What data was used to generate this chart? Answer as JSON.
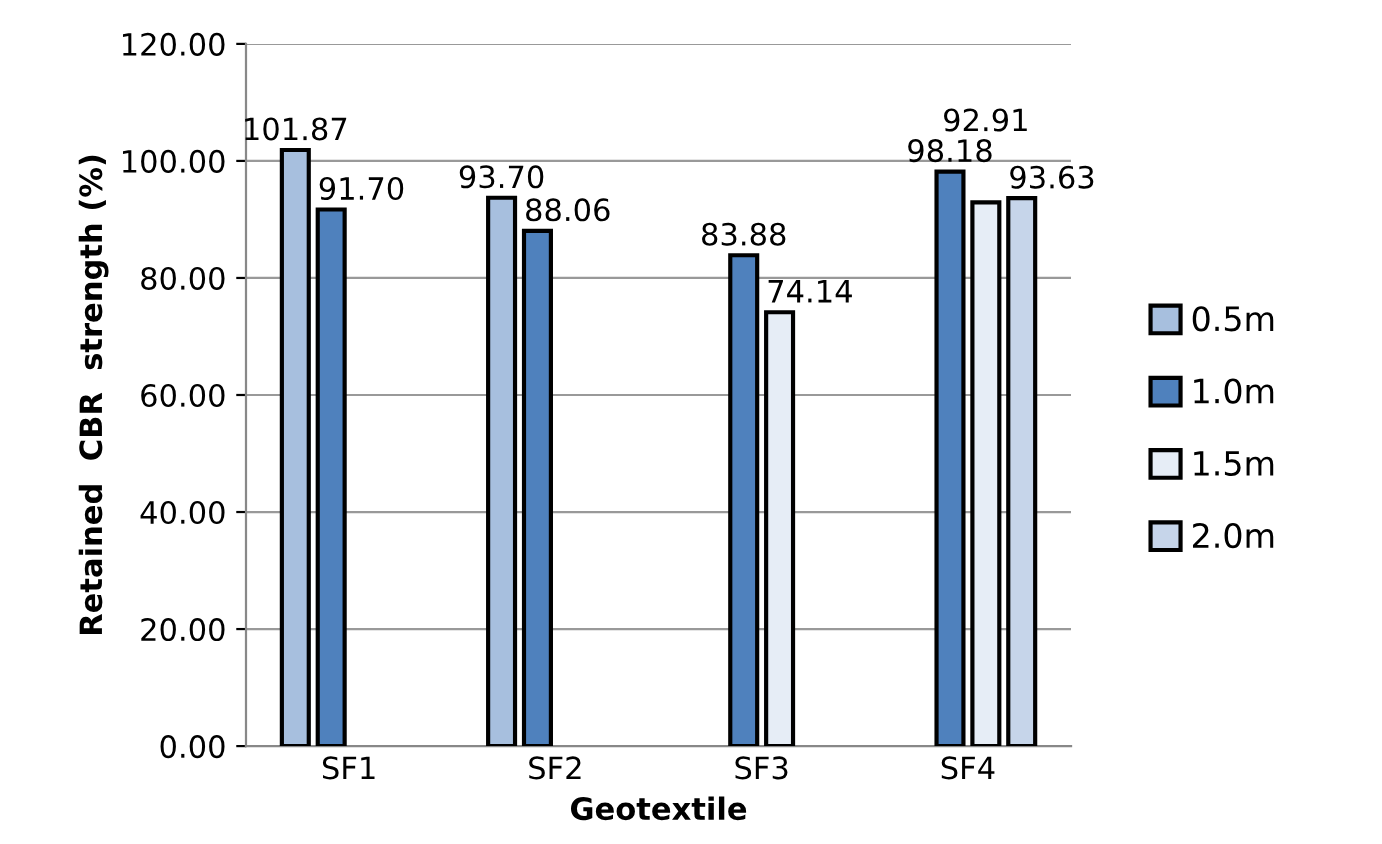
{
  "chart_data": {
    "type": "bar",
    "xlabel": "Geotextile",
    "ylabel": "Retained  CBR  strength (%)",
    "categories": [
      "SF1",
      "SF2",
      "SF3",
      "SF4"
    ],
    "series": [
      {
        "name": "0.5m",
        "color": "#a7bfde",
        "values": [
          101.87,
          93.7,
          null,
          null
        ],
        "value_labels": [
          "101.87",
          "93.70",
          null,
          null
        ]
      },
      {
        "name": "1.0m",
        "color": "#4f81bd",
        "values": [
          91.7,
          88.06,
          83.88,
          98.18
        ],
        "value_labels": [
          "91.70",
          "88.06",
          "83.88",
          "98.18"
        ]
      },
      {
        "name": "1.5m",
        "color": "#e6edf6",
        "values": [
          null,
          null,
          74.14,
          92.91
        ],
        "value_labels": [
          null,
          null,
          "74.14",
          "92.91"
        ]
      },
      {
        "name": "2.0m",
        "color": "#c6d5ea",
        "values": [
          null,
          null,
          null,
          93.63
        ],
        "value_labels": [
          null,
          null,
          null,
          "93.63"
        ]
      }
    ],
    "ylim": [
      0,
      120
    ],
    "yticks": [
      {
        "value": 0,
        "label": "0.00"
      },
      {
        "value": 20,
        "label": "20.00"
      },
      {
        "value": 40,
        "label": "40.00"
      },
      {
        "value": 60,
        "label": "60.00"
      },
      {
        "value": 80,
        "label": "80.00"
      },
      {
        "value": 100,
        "label": "100.00"
      },
      {
        "value": 120,
        "label": "120.00"
      }
    ],
    "grid": "y",
    "legend": "right"
  }
}
